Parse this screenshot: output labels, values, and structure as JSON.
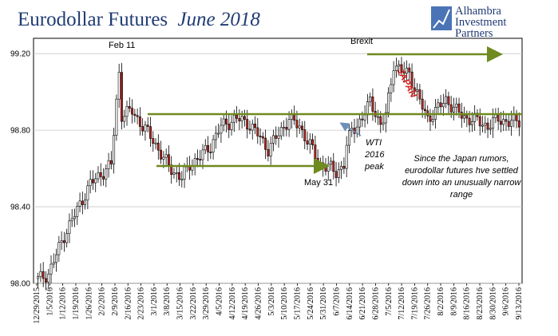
{
  "title": {
    "main": "Eurodollar Futures",
    "italic": "June 2018"
  },
  "logo": {
    "line1": "Alhambra",
    "line2": "Investment",
    "line3": "Partners"
  },
  "colors": {
    "up_fill": "#ffffff",
    "down_fill": "#c0251f",
    "wick": "#000000",
    "channel": "#6f8a1f",
    "arrow": "#6d8fb8",
    "japan": "#d32020"
  },
  "chart_data": {
    "type": "candlestick",
    "ylim": [
      98.0,
      99.28
    ],
    "yticks": [
      "99.20",
      "98.80",
      "98.40",
      "98.00"
    ],
    "xticks": [
      "12/29/2015",
      "1/5/2016",
      "1/12/2016",
      "1/19/2016",
      "1/26/2016",
      "2/2/2016",
      "2/9/2016",
      "2/16/2016",
      "2/23/2016",
      "3/1/2016",
      "3/8/2016",
      "3/15/2016",
      "3/22/2016",
      "3/29/2016",
      "4/5/2016",
      "4/12/2016",
      "4/19/2016",
      "4/26/2016",
      "5/3/2016",
      "5/10/2016",
      "5/17/2016",
      "5/24/2016",
      "5/31/2016",
      "6/7/2016",
      "6/14/2016",
      "6/21/2016",
      "6/28/2016",
      "7/5/2016",
      "7/12/2016",
      "7/19/2016",
      "7/26/2016",
      "8/2/2016",
      "8/9/2016",
      "8/16/2016",
      "8/23/2016",
      "8/30/2016",
      "9/6/2016",
      "9/13/2016"
    ],
    "close_keyframes": [
      [
        0,
        98.02
      ],
      [
        4,
        98.05
      ],
      [
        10,
        98.25
      ],
      [
        20,
        98.52
      ],
      [
        28,
        98.62
      ],
      [
        30,
        98.95
      ],
      [
        31,
        99.1
      ],
      [
        32,
        98.88
      ],
      [
        36,
        98.9
      ],
      [
        40,
        98.82
      ],
      [
        44,
        98.75
      ],
      [
        48,
        98.65
      ],
      [
        52,
        98.58
      ],
      [
        55,
        98.55
      ],
      [
        58,
        98.62
      ],
      [
        62,
        98.66
      ],
      [
        66,
        98.72
      ],
      [
        70,
        98.82
      ],
      [
        74,
        98.85
      ],
      [
        76,
        98.86
      ],
      [
        80,
        98.84
      ],
      [
        84,
        98.78
      ],
      [
        88,
        98.7
      ],
      [
        92,
        98.78
      ],
      [
        96,
        98.86
      ],
      [
        100,
        98.82
      ],
      [
        104,
        98.72
      ],
      [
        108,
        98.62
      ],
      [
        112,
        98.6
      ],
      [
        114,
        98.58
      ],
      [
        117,
        98.62
      ],
      [
        118,
        98.72
      ],
      [
        120,
        98.8
      ],
      [
        124,
        98.86
      ],
      [
        127,
        98.95
      ],
      [
        129,
        98.9
      ],
      [
        131,
        98.82
      ],
      [
        133,
        98.88
      ],
      [
        135,
        99.05
      ],
      [
        136,
        99.15
      ],
      [
        138,
        99.12
      ],
      [
        140,
        99.1
      ],
      [
        142,
        99.1
      ],
      [
        144,
        99.02
      ],
      [
        146,
        98.95
      ],
      [
        149,
        98.86
      ],
      [
        152,
        98.9
      ],
      [
        156,
        98.96
      ],
      [
        160,
        98.9
      ],
      [
        164,
        98.86
      ],
      [
        168,
        98.85
      ],
      [
        172,
        98.82
      ],
      [
        176,
        98.86
      ],
      [
        180,
        98.84
      ],
      [
        184,
        98.85
      ]
    ],
    "annotations": {
      "feb11": "Feb 11",
      "brexit": "Brexit",
      "may31": "May 31",
      "wti_line1": "WTI",
      "wti_line2": "2016",
      "wti_line3": "peak",
      "japan": "JAPAN",
      "note_line1": "Since the Japan rumors,",
      "note_line2": "eurodollar futures hve settled",
      "note_line3": "down into an unusually narrow",
      "note_line4": "range"
    }
  }
}
